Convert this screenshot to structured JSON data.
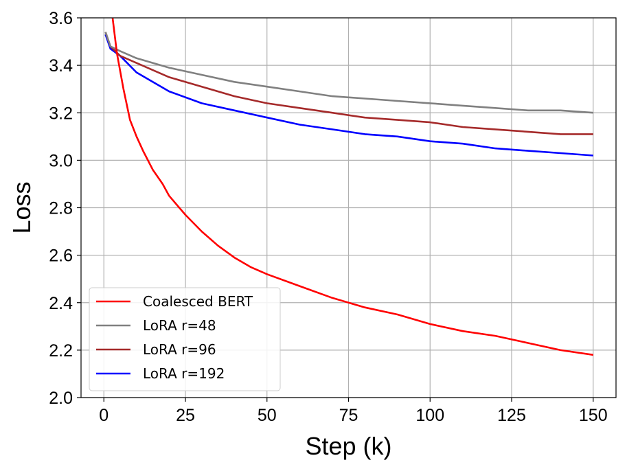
{
  "chart_data": {
    "type": "line",
    "xlabel": "Step (k)",
    "ylabel": "Loss",
    "xlim": [
      -7,
      157
    ],
    "ylim": [
      2.0,
      3.6
    ],
    "xticks": [
      0,
      25,
      50,
      75,
      100,
      125,
      150
    ],
    "yticks": [
      2.0,
      2.2,
      2.4,
      2.6,
      2.8,
      3.0,
      3.2,
      3.4,
      3.6
    ],
    "xtick_labels": [
      "0",
      "25",
      "50",
      "75",
      "100",
      "125",
      "150"
    ],
    "ytick_labels": [
      "2.0",
      "2.2",
      "2.4",
      "2.6",
      "2.8",
      "3.0",
      "3.2",
      "3.4",
      "3.6"
    ],
    "grid": true,
    "legend_position": "lower-left",
    "series": [
      {
        "name": "Coalesced BERT",
        "color": "#ff0000",
        "x": [
          2.5,
          4,
          6,
          8,
          10,
          12,
          15,
          18,
          20,
          25,
          30,
          35,
          40,
          45,
          50,
          60,
          70,
          80,
          90,
          100,
          110,
          120,
          130,
          140,
          150
        ],
        "y": [
          3.62,
          3.45,
          3.3,
          3.17,
          3.1,
          3.04,
          2.96,
          2.9,
          2.85,
          2.77,
          2.7,
          2.64,
          2.59,
          2.55,
          2.52,
          2.47,
          2.42,
          2.38,
          2.35,
          2.31,
          2.28,
          2.26,
          2.23,
          2.2,
          2.18
        ]
      },
      {
        "name": "LoRA r=48",
        "color": "#808080",
        "x": [
          0.5,
          2,
          5,
          10,
          20,
          30,
          40,
          50,
          60,
          70,
          80,
          90,
          100,
          110,
          120,
          130,
          140,
          150
        ],
        "y": [
          3.54,
          3.48,
          3.46,
          3.43,
          3.39,
          3.36,
          3.33,
          3.31,
          3.29,
          3.27,
          3.26,
          3.25,
          3.24,
          3.23,
          3.22,
          3.21,
          3.21,
          3.2
        ]
      },
      {
        "name": "LoRA r=96",
        "color": "#a52a2a",
        "x": [
          0.5,
          2,
          5,
          10,
          20,
          30,
          40,
          50,
          60,
          70,
          80,
          90,
          100,
          110,
          120,
          130,
          140,
          150
        ],
        "y": [
          3.54,
          3.48,
          3.44,
          3.41,
          3.35,
          3.31,
          3.27,
          3.24,
          3.22,
          3.2,
          3.18,
          3.17,
          3.16,
          3.14,
          3.13,
          3.12,
          3.11,
          3.11
        ]
      },
      {
        "name": "LoRA r=192",
        "color": "#0000ff",
        "x": [
          0.5,
          2,
          5,
          10,
          20,
          30,
          40,
          50,
          60,
          70,
          80,
          90,
          100,
          110,
          120,
          130,
          140,
          150
        ],
        "y": [
          3.53,
          3.47,
          3.44,
          3.37,
          3.29,
          3.24,
          3.21,
          3.18,
          3.15,
          3.13,
          3.11,
          3.1,
          3.08,
          3.07,
          3.05,
          3.04,
          3.03,
          3.02
        ]
      }
    ]
  }
}
